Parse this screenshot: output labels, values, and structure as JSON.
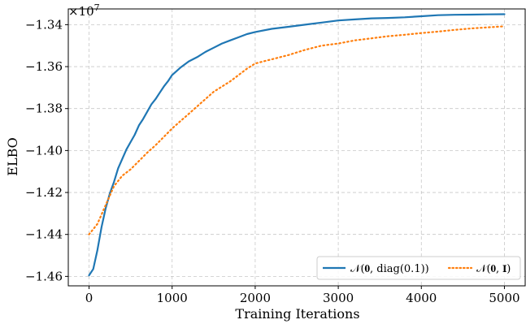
{
  "chart_data": {
    "type": "line",
    "title": "",
    "xlabel": "Training Iterations",
    "ylabel": "ELBO",
    "offset_label": "×10",
    "offset_exponent": "7",
    "xlim": [
      -250,
      5250
    ],
    "ylim": [
      -1.4645,
      -1.3325
    ],
    "xticks": [
      0,
      1000,
      2000,
      3000,
      4000,
      5000
    ],
    "xtick_labels": [
      "0",
      "1000",
      "2000",
      "3000",
      "4000",
      "5000"
    ],
    "yticks": [
      -1.46,
      -1.44,
      -1.42,
      -1.4,
      -1.38,
      -1.36,
      -1.34
    ],
    "ytick_labels": [
      "−1.46",
      "−1.44",
      "−1.42",
      "−1.40",
      "−1.38",
      "−1.36",
      "−1.34"
    ],
    "grid": true,
    "legend_position": "bottom-right",
    "series": [
      {
        "name": "𝒩(𝟎, diag(0.1))",
        "color": "#1f77b4",
        "style": "solid",
        "x": [
          0,
          50,
          100,
          150,
          200,
          250,
          300,
          350,
          400,
          450,
          500,
          550,
          600,
          650,
          700,
          750,
          800,
          850,
          900,
          950,
          1000,
          1100,
          1200,
          1300,
          1400,
          1500,
          1600,
          1700,
          1800,
          1900,
          2000,
          2200,
          2400,
          2600,
          2800,
          3000,
          3200,
          3400,
          3600,
          3800,
          4000,
          4200,
          4400,
          4600,
          4800,
          5000
        ],
        "y": [
          -1.4595,
          -1.4565,
          -1.4475,
          -1.4365,
          -1.4275,
          -1.4205,
          -1.415,
          -1.4085,
          -1.404,
          -1.3995,
          -1.396,
          -1.3925,
          -1.388,
          -1.385,
          -1.3815,
          -1.378,
          -1.3755,
          -1.3725,
          -1.3695,
          -1.367,
          -1.364,
          -1.3605,
          -1.3575,
          -1.3555,
          -1.353,
          -1.351,
          -1.349,
          -1.3475,
          -1.346,
          -1.3445,
          -1.3435,
          -1.342,
          -1.341,
          -1.34,
          -1.339,
          -1.338,
          -1.3375,
          -1.337,
          -1.3368,
          -1.3365,
          -1.336,
          -1.3355,
          -1.3353,
          -1.3352,
          -1.3351,
          -1.335
        ]
      },
      {
        "name": "𝒩(𝟎, 𝐈)",
        "color": "#ff7f0e",
        "style": "dotted",
        "x": [
          0,
          100,
          200,
          300,
          400,
          500,
          600,
          700,
          800,
          900,
          1000,
          1100,
          1200,
          1300,
          1400,
          1500,
          1600,
          1700,
          1800,
          1900,
          2000,
          2200,
          2400,
          2600,
          2800,
          3000,
          3200,
          3400,
          3600,
          3800,
          4000,
          4200,
          4400,
          4600,
          4800,
          5000
        ],
        "y": [
          -1.44,
          -1.435,
          -1.426,
          -1.417,
          -1.412,
          -1.409,
          -1.405,
          -1.401,
          -1.3975,
          -1.3935,
          -1.3895,
          -1.386,
          -1.3825,
          -1.379,
          -1.3755,
          -1.372,
          -1.3695,
          -1.367,
          -1.364,
          -1.361,
          -1.3585,
          -1.3565,
          -1.3545,
          -1.352,
          -1.35,
          -1.349,
          -1.3475,
          -1.3465,
          -1.3455,
          -1.3448,
          -1.344,
          -1.3433,
          -1.3425,
          -1.3418,
          -1.3413,
          -1.3408
        ]
      }
    ]
  }
}
